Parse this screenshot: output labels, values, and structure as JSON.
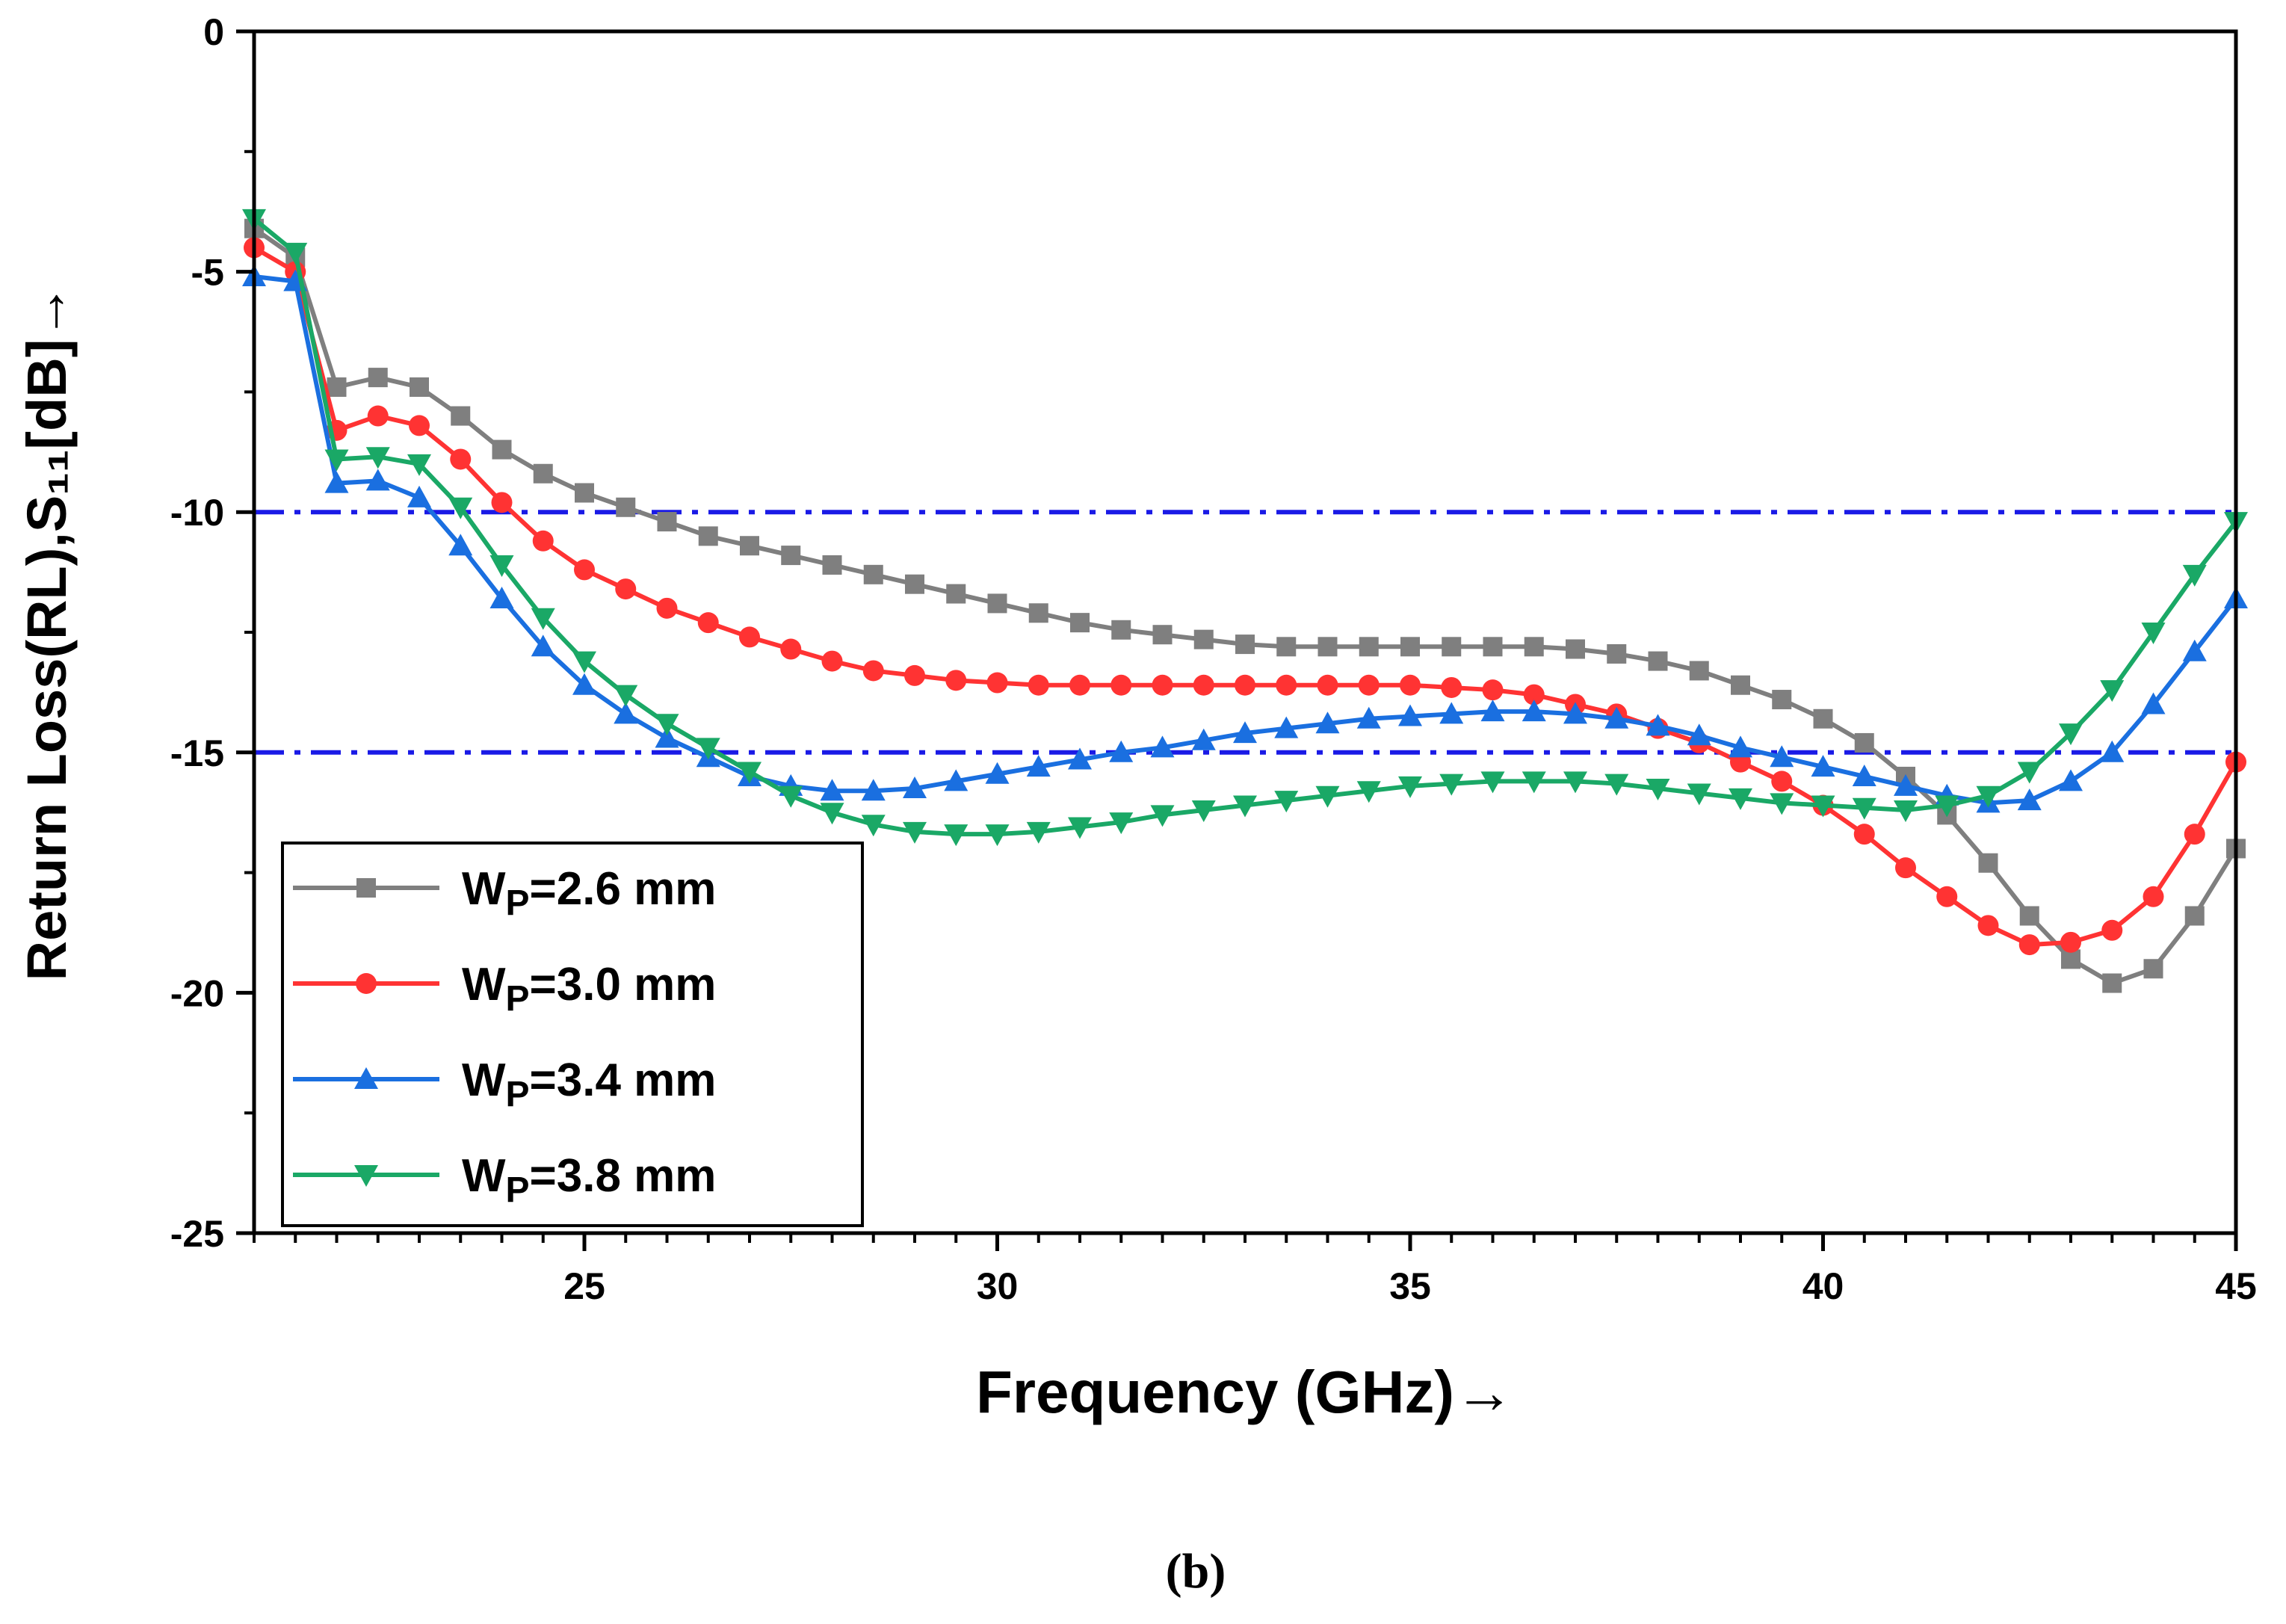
{
  "chart_data": {
    "type": "line",
    "title": "",
    "xlabel": "Frequency (GHz)→",
    "ylabel": "Return Loss(RL),S₁₁[dB]→",
    "xlim": [
      21,
      45
    ],
    "ylim": [
      -25,
      0
    ],
    "x_ticks": [
      25,
      30,
      35,
      40,
      45
    ],
    "y_ticks": [
      0,
      -5,
      -10,
      -15,
      -20,
      -25
    ],
    "grid": false,
    "legend_position": "bottom-left",
    "caption": "(b)",
    "reference_lines": [
      {
        "y": -10,
        "color": "#1a1ae6",
        "style": "dash-dot"
      },
      {
        "y": -15,
        "color": "#1a1ae6",
        "style": "dash-dot"
      }
    ],
    "x": [
      21.0,
      21.5,
      22.0,
      22.5,
      23.0,
      23.5,
      24.0,
      24.5,
      25.0,
      25.5,
      26.0,
      26.5,
      27.0,
      27.5,
      28.0,
      28.5,
      29.0,
      29.5,
      30.0,
      30.5,
      31.0,
      31.5,
      32.0,
      32.5,
      33.0,
      33.5,
      34.0,
      34.5,
      35.0,
      35.5,
      36.0,
      36.5,
      37.0,
      37.5,
      38.0,
      38.5,
      39.0,
      39.5,
      40.0,
      40.5,
      41.0,
      41.5,
      42.0,
      42.5,
      43.0,
      43.5,
      44.0,
      44.5,
      45.0
    ],
    "series": [
      {
        "name": "W_P=2.6 mm",
        "legend_main": "W",
        "legend_sub": "P",
        "legend_rest": "=2.6 mm",
        "color": "#7f7f7f",
        "marker": "square",
        "values": [
          -4.1,
          -4.7,
          -7.4,
          -7.2,
          -7.4,
          -8.0,
          -8.7,
          -9.2,
          -9.6,
          -9.9,
          -10.2,
          -10.5,
          -10.7,
          -10.9,
          -11.1,
          -11.3,
          -11.5,
          -11.7,
          -11.9,
          -12.1,
          -12.3,
          -12.45,
          -12.55,
          -12.65,
          -12.75,
          -12.8,
          -12.8,
          -12.8,
          -12.8,
          -12.8,
          -12.8,
          -12.8,
          -12.85,
          -12.95,
          -13.1,
          -13.3,
          -13.6,
          -13.9,
          -14.3,
          -14.8,
          -15.5,
          -16.3,
          -17.3,
          -18.4,
          -19.3,
          -19.8,
          -19.5,
          -18.4,
          -17.0
        ]
      },
      {
        "name": "W_P=3.0 mm",
        "legend_main": "W",
        "legend_sub": "P",
        "legend_rest": "=3.0 mm",
        "color": "#ff3333",
        "marker": "circle",
        "values": [
          -4.5,
          -5.0,
          -8.3,
          -8.0,
          -8.2,
          -8.9,
          -9.8,
          -10.6,
          -11.2,
          -11.6,
          -12.0,
          -12.3,
          -12.6,
          -12.85,
          -13.1,
          -13.3,
          -13.4,
          -13.5,
          -13.55,
          -13.6,
          -13.6,
          -13.6,
          -13.6,
          -13.6,
          -13.6,
          -13.6,
          -13.6,
          -13.6,
          -13.6,
          -13.65,
          -13.7,
          -13.8,
          -14.0,
          -14.2,
          -14.5,
          -14.8,
          -15.2,
          -15.6,
          -16.1,
          -16.7,
          -17.4,
          -18.0,
          -18.6,
          -19.0,
          -18.95,
          -18.7,
          -18.0,
          -16.7,
          -15.2
        ]
      },
      {
        "name": "W_P=3.4 mm",
        "legend_main": "W",
        "legend_sub": "P",
        "legend_rest": "=3.4 mm",
        "color": "#1a6fe0",
        "marker": "triangle-up",
        "values": [
          -5.1,
          -5.2,
          -9.4,
          -9.35,
          -9.7,
          -10.7,
          -11.8,
          -12.8,
          -13.6,
          -14.2,
          -14.7,
          -15.1,
          -15.5,
          -15.7,
          -15.8,
          -15.8,
          -15.75,
          -15.6,
          -15.45,
          -15.3,
          -15.15,
          -15.0,
          -14.9,
          -14.75,
          -14.6,
          -14.5,
          -14.4,
          -14.3,
          -14.25,
          -14.2,
          -14.15,
          -14.15,
          -14.2,
          -14.3,
          -14.45,
          -14.65,
          -14.9,
          -15.1,
          -15.3,
          -15.5,
          -15.7,
          -15.9,
          -16.05,
          -16.0,
          -15.6,
          -15.0,
          -14.0,
          -12.9,
          -11.8
        ]
      },
      {
        "name": "W_P=3.8 mm",
        "legend_main": "W",
        "legend_sub": "P",
        "legend_rest": "=3.8 mm",
        "color": "#1aa866",
        "marker": "triangle-down",
        "values": [
          -3.9,
          -4.6,
          -8.9,
          -8.85,
          -9.0,
          -9.9,
          -11.1,
          -12.2,
          -13.1,
          -13.8,
          -14.4,
          -14.9,
          -15.4,
          -15.9,
          -16.25,
          -16.5,
          -16.65,
          -16.7,
          -16.7,
          -16.65,
          -16.55,
          -16.45,
          -16.3,
          -16.2,
          -16.1,
          -16.0,
          -15.9,
          -15.8,
          -15.7,
          -15.65,
          -15.6,
          -15.6,
          -15.6,
          -15.65,
          -15.75,
          -15.85,
          -15.95,
          -16.05,
          -16.1,
          -16.15,
          -16.2,
          -16.1,
          -15.9,
          -15.4,
          -14.6,
          -13.7,
          -12.5,
          -11.3,
          -10.2
        ]
      }
    ]
  }
}
